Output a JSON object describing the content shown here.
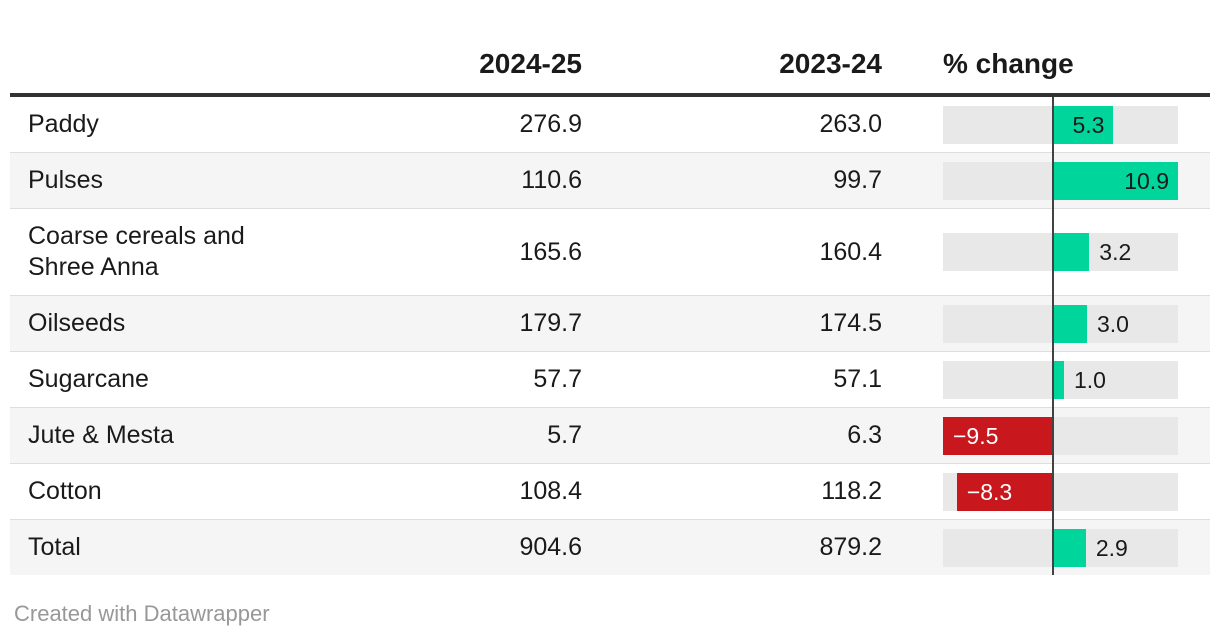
{
  "table": {
    "columns": [
      "",
      "2024-25",
      "2023-24",
      "% change"
    ],
    "rows": [
      {
        "label": "Paddy",
        "current": "276.9",
        "previous": "263.0",
        "change": 5.3,
        "change_label": "5.3"
      },
      {
        "label": "Pulses",
        "current": "110.6",
        "previous": "99.7",
        "change": 10.9,
        "change_label": "10.9"
      },
      {
        "label": "Coarse cereals and Shree Anna",
        "label_lines": [
          "Coarse cereals and",
          "Shree Anna"
        ],
        "current": "165.6",
        "previous": "160.4",
        "change": 3.2,
        "change_label": "3.2"
      },
      {
        "label": "Oilseeds",
        "current": "179.7",
        "previous": "174.5",
        "change": 3.0,
        "change_label": "3.0"
      },
      {
        "label": "Sugarcane",
        "current": "57.7",
        "previous": "57.1",
        "change": 1.0,
        "change_label": "1.0"
      },
      {
        "label": "Jute & Mesta",
        "current": "5.7",
        "previous": "6.3",
        "change": -9.5,
        "change_label": "−9.5"
      },
      {
        "label": "Cotton",
        "current": "108.4",
        "previous": "118.2",
        "change": -8.3,
        "change_label": "−8.3"
      },
      {
        "label": "Total",
        "current": "904.6",
        "previous": "879.2",
        "change": 2.9,
        "change_label": "2.9"
      }
    ]
  },
  "axis": {
    "min": -9.5,
    "max": 10.9,
    "inside_label_threshold": 5
  },
  "colors": {
    "positive": "#00d59c",
    "negative": "#c9181d",
    "track": "#e8e8e8",
    "zero_line": "#424242",
    "header_rule": "#323232",
    "alt_row": "#f5f5f5",
    "text": "#1a1a1a",
    "footer_text": "#989898"
  },
  "footer": {
    "attribution": "Created with Datawrapper"
  },
  "chart_data": {
    "type": "table",
    "title": "",
    "columns": [
      "",
      "2024-25",
      "2023-24",
      "% change"
    ],
    "rows": [
      [
        "Paddy",
        276.9,
        263.0,
        5.3
      ],
      [
        "Pulses",
        110.6,
        99.7,
        10.9
      ],
      [
        "Coarse cereals and Shree Anna",
        165.6,
        160.4,
        3.2
      ],
      [
        "Oilseeds",
        179.7,
        174.5,
        3.0
      ],
      [
        "Sugarcane",
        57.7,
        57.1,
        1.0
      ],
      [
        "Jute & Mesta",
        5.7,
        6.3,
        -9.5
      ],
      [
        "Cotton",
        108.4,
        118.2,
        -8.3
      ],
      [
        "Total",
        904.6,
        879.2,
        2.9
      ]
    ],
    "bar_column": "% change",
    "bar_type": "diverging-bar",
    "bar_axis_range": [
      -9.5,
      10.9
    ],
    "positive_color": "#00d59c",
    "negative_color": "#c9181d",
    "attribution": "Created with Datawrapper"
  }
}
